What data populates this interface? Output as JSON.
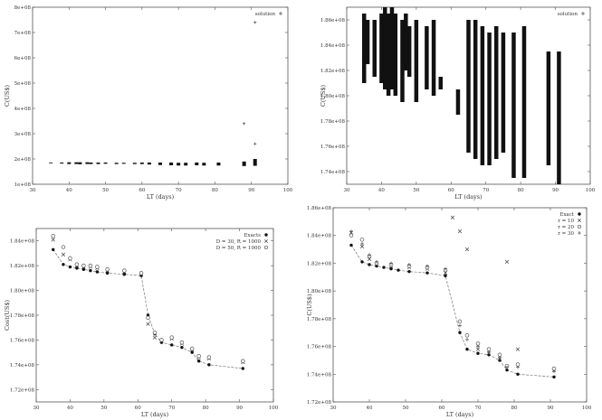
{
  "chart_data": [
    {
      "type": "scatter",
      "xlabel": "LT (days)",
      "ylabel": "C(US$)",
      "xlim": [
        30,
        100
      ],
      "ylim": [
        100000000,
        800000000
      ],
      "xticks": [
        "30",
        "40",
        "50",
        "60",
        "70",
        "80",
        "90",
        "100"
      ],
      "yticks": [
        "1e+08",
        "2e+08",
        "3e+08",
        "4e+08",
        "5e+08",
        "6e+08",
        "7e+08",
        "8e+08"
      ],
      "legend": [
        "solution"
      ],
      "legend_position": "top-right",
      "columns": [
        {
          "x": 35,
          "y0": 183000000,
          "y1": 186000000
        },
        {
          "x": 38,
          "y0": 182000000,
          "y1": 186000000
        },
        {
          "x": 40,
          "y0": 180000000,
          "y1": 187000000
        },
        {
          "x": 42,
          "y0": 180000000,
          "y1": 187000000
        },
        {
          "x": 43,
          "y0": 179000000,
          "y1": 187000000
        },
        {
          "x": 45,
          "y0": 180000000,
          "y1": 187000000
        },
        {
          "x": 46,
          "y0": 180000000,
          "y1": 186000000
        },
        {
          "x": 48,
          "y0": 180000000,
          "y1": 186000000
        },
        {
          "x": 50,
          "y0": 181000000,
          "y1": 186000000
        },
        {
          "x": 53,
          "y0": 180000000,
          "y1": 185000000
        },
        {
          "x": 55,
          "y0": 181000000,
          "y1": 185000000
        },
        {
          "x": 58,
          "y0": 180000000,
          "y1": 185000000
        },
        {
          "x": 60,
          "y0": 180000000,
          "y1": 186000000
        },
        {
          "x": 62,
          "y0": 178000000,
          "y1": 186000000
        },
        {
          "x": 65,
          "y0": 176000000,
          "y1": 186000000
        },
        {
          "x": 68,
          "y0": 175000000,
          "y1": 186000000
        },
        {
          "x": 70,
          "y0": 174000000,
          "y1": 185000000
        },
        {
          "x": 72,
          "y0": 174000000,
          "y1": 185000000
        },
        {
          "x": 75,
          "y0": 175000000,
          "y1": 186000000
        },
        {
          "x": 77,
          "y0": 174000000,
          "y1": 185000000
        },
        {
          "x": 81,
          "y0": 174000000,
          "y1": 186000000
        },
        {
          "x": 88,
          "y0": 172000000,
          "y1": 190000000
        },
        {
          "x": 91,
          "y0": 173000000,
          "y1": 200000000
        }
      ],
      "outliers": [
        {
          "x": 88,
          "y": 340000000
        },
        {
          "x": 91,
          "y": 260000000
        },
        {
          "x": 91,
          "y": 740000000
        }
      ]
    },
    {
      "type": "scatter",
      "xlabel": "LT (days)",
      "ylabel": "C(US$)",
      "xlim": [
        30,
        100
      ],
      "ylim": [
        173000000,
        187000000
      ],
      "xticks": [
        "30",
        "40",
        "50",
        "60",
        "70",
        "80",
        "90",
        "100"
      ],
      "yticks": [
        "1.74e+08",
        "1.76e+08",
        "1.78e+08",
        "1.80e+08",
        "1.82e+08",
        "1.84e+08",
        "1.86e+08"
      ],
      "legend": [
        "solution"
      ],
      "legend_position": "top-right",
      "columns": [
        {
          "x": 35,
          "y0": 181000000,
          "y1": 186500000
        },
        {
          "x": 36,
          "y0": 182500000,
          "y1": 186000000
        },
        {
          "x": 38,
          "y0": 181500000,
          "y1": 186000000
        },
        {
          "x": 40,
          "y0": 181000000,
          "y1": 186500000
        },
        {
          "x": 41,
          "y0": 180500000,
          "y1": 187000000
        },
        {
          "x": 42,
          "y0": 180000000,
          "y1": 186500000
        },
        {
          "x": 43,
          "y0": 180500000,
          "y1": 187000000
        },
        {
          "x": 44,
          "y0": 180000000,
          "y1": 186500000
        },
        {
          "x": 46,
          "y0": 179500000,
          "y1": 186000000
        },
        {
          "x": 47,
          "y0": 182000000,
          "y1": 186500000
        },
        {
          "x": 48,
          "y0": 181500000,
          "y1": 185500000
        },
        {
          "x": 50,
          "y0": 179500000,
          "y1": 186000000
        },
        {
          "x": 53,
          "y0": 180500000,
          "y1": 185500000
        },
        {
          "x": 55,
          "y0": 180000000,
          "y1": 186000000
        },
        {
          "x": 57,
          "y0": 180500000,
          "y1": 181500000
        },
        {
          "x": 62,
          "y0": 178500000,
          "y1": 180500000
        },
        {
          "x": 65,
          "y0": 175500000,
          "y1": 186000000
        },
        {
          "x": 67,
          "y0": 175000000,
          "y1": 186000000
        },
        {
          "x": 69,
          "y0": 174500000,
          "y1": 185500000
        },
        {
          "x": 71,
          "y0": 174500000,
          "y1": 185000000
        },
        {
          "x": 73,
          "y0": 175000000,
          "y1": 185500000
        },
        {
          "x": 75,
          "y0": 175500000,
          "y1": 185000000
        },
        {
          "x": 78,
          "y0": 173500000,
          "y1": 185000000
        },
        {
          "x": 81,
          "y0": 173500000,
          "y1": 185500000
        },
        {
          "x": 88,
          "y0": 174500000,
          "y1": 183500000
        },
        {
          "x": 91,
          "y0": 173000000,
          "y1": 183500000
        }
      ]
    },
    {
      "type": "line",
      "xlabel": "LT (days)",
      "ylabel": "Cost(US$)",
      "xlim": [
        30,
        100
      ],
      "ylim": [
        171000000,
        185000000
      ],
      "xticks": [
        "30",
        "40",
        "50",
        "60",
        "70",
        "80",
        "90",
        "100"
      ],
      "yticks": [
        "1.72e+08",
        "1.74e+08",
        "1.76e+08",
        "1.78e+08",
        "1.80e+08",
        "1.82e+08",
        "1.84e+08"
      ],
      "legend_position": "top-right",
      "series": [
        {
          "name": "Exacts",
          "marker": "filled-circle",
          "x": [
            35,
            38,
            40,
            42,
            44,
            46,
            48,
            51,
            56,
            61,
            63,
            65,
            67,
            70,
            73,
            76,
            78,
            81,
            91
          ],
          "y": [
            183300000,
            182100000,
            181900000,
            181800000,
            181700000,
            181600000,
            181500000,
            181400000,
            181300000,
            181200000,
            178000000,
            176500000,
            175800000,
            175600000,
            175400000,
            175000000,
            174300000,
            174000000,
            173700000
          ]
        },
        {
          "name": "D = 30, R = 1000",
          "marker": "x",
          "x": [
            35,
            38,
            40,
            42,
            44,
            46,
            48,
            51,
            56,
            61,
            63,
            65,
            67,
            70,
            73,
            76,
            78,
            81,
            91
          ],
          "y": [
            184100000,
            182900000,
            182500000,
            182000000,
            181900000,
            181900000,
            181800000,
            181600000,
            181500000,
            181300000,
            177300000,
            176200000,
            175900000,
            176100000,
            175700000,
            175200000,
            174600000,
            174500000,
            174200000
          ]
        },
        {
          "name": "D = 50, R = 1000",
          "marker": "open-circle",
          "x": [
            35,
            38,
            40,
            42,
            44,
            46,
            48,
            51,
            56,
            61,
            63,
            65,
            67,
            70,
            73,
            76,
            78,
            81,
            91
          ],
          "y": [
            184400000,
            183500000,
            182600000,
            182100000,
            182000000,
            182000000,
            181900000,
            181700000,
            181600000,
            181400000,
            177800000,
            176600000,
            176000000,
            176200000,
            175800000,
            175300000,
            174700000,
            174600000,
            174300000
          ]
        }
      ]
    },
    {
      "type": "line",
      "xlabel": "LT (days)",
      "ylabel": "C(US$)",
      "xlim": [
        30,
        100
      ],
      "ylim": [
        172000000,
        186000000
      ],
      "xticks": [
        "30",
        "40",
        "50",
        "60",
        "70",
        "80",
        "90",
        "100"
      ],
      "yticks": [
        "1.72e+08",
        "1.74e+08",
        "1.76e+08",
        "1.78e+08",
        "1.80e+08",
        "1.82e+08",
        "1.84e+08",
        "1.86e+08"
      ],
      "legend_position": "top-right",
      "series": [
        {
          "name": "Exact",
          "marker": "filled-circle",
          "x": [
            35,
            38,
            40,
            42,
            44,
            46,
            48,
            51,
            56,
            61,
            65,
            67,
            70,
            73,
            76,
            78,
            81,
            91
          ],
          "y": [
            183300000,
            182100000,
            181900000,
            181800000,
            181700000,
            181600000,
            181500000,
            181400000,
            181300000,
            181100000,
            177000000,
            175800000,
            175500000,
            175400000,
            175000000,
            174300000,
            174000000,
            173800000
          ]
        },
        {
          "name": "r = 10",
          "marker": "x",
          "x": [
            35,
            38,
            40,
            42,
            46,
            51,
            56,
            61,
            63,
            65,
            67,
            70,
            73,
            76,
            78,
            81,
            91
          ],
          "y": [
            184200000,
            183200000,
            182300000,
            181900000,
            181800000,
            181700000,
            181600000,
            181300000,
            185300000,
            184300000,
            183000000,
            175800000,
            175500000,
            175100000,
            182100000,
            175800000,
            174300000
          ]
        },
        {
          "name": "r = 20",
          "marker": "open-circle",
          "x": [
            35,
            38,
            40,
            42,
            46,
            51,
            56,
            61,
            65,
            67,
            70,
            73,
            76,
            78,
            81,
            91
          ],
          "y": [
            184000000,
            183700000,
            182500000,
            182000000,
            181900000,
            181800000,
            181700000,
            181500000,
            177800000,
            176800000,
            176200000,
            175800000,
            175400000,
            174600000,
            174700000,
            174400000
          ]
        },
        {
          "name": "r = 30",
          "marker": "plus",
          "x": [
            35,
            38,
            40,
            42,
            46,
            51,
            56,
            61,
            65,
            67,
            70,
            73,
            76,
            78,
            81,
            91
          ],
          "y": [
            184300000,
            183400000,
            182600000,
            182100000,
            182000000,
            181900000,
            181800000,
            181600000,
            177500000,
            176500000,
            176000000,
            175600000,
            175200000,
            174500000,
            174500000,
            174200000
          ]
        }
      ]
    }
  ]
}
